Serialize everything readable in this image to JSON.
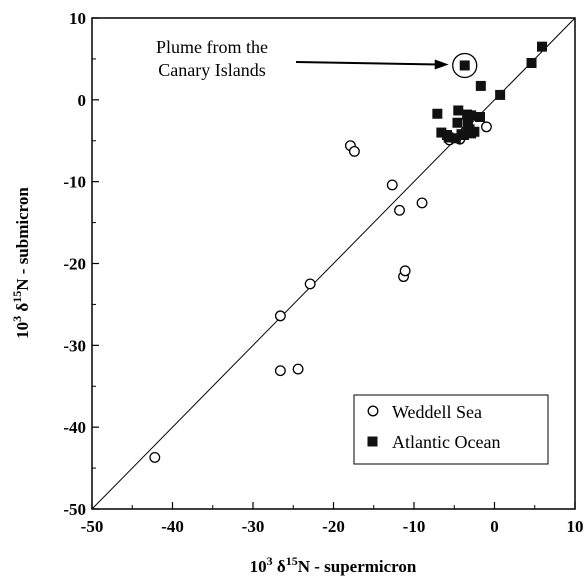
{
  "chart_data": {
    "type": "scatter",
    "xlabel": {
      "prefix": "10",
      "prefix_sup": "3",
      "delta": "δ",
      "iso_sup": "15",
      "suffix": "N - supermicron"
    },
    "ylabel": {
      "prefix": "10",
      "prefix_sup": "3",
      "delta": "δ",
      "iso_sup": "15",
      "suffix": "N - submicron"
    },
    "xlim": [
      -50,
      10
    ],
    "ylim": [
      -50,
      10
    ],
    "xticks": [
      "-50",
      "-40",
      "-30",
      "-20",
      "-10",
      "0",
      "10"
    ],
    "yticks": [
      "-50",
      "-40",
      "-30",
      "-20",
      "-10",
      "0",
      "10"
    ],
    "xtick_values": [
      -50,
      -40,
      -30,
      -20,
      -10,
      0,
      10
    ],
    "ytick_values": [
      -50,
      -40,
      -30,
      -20,
      -10,
      0,
      10
    ],
    "grid": false,
    "reference_line": {
      "from": [
        -50,
        -50
      ],
      "to": [
        10,
        10
      ]
    },
    "legend_position": "bottom-right",
    "series": [
      {
        "name": "Weddell Sea",
        "marker": "open-circle",
        "color": "#000000",
        "points": [
          [
            -42.2,
            -43.7
          ],
          [
            -26.6,
            -26.4
          ],
          [
            -26.6,
            -33.1
          ],
          [
            -24.4,
            -32.9
          ],
          [
            -22.9,
            -22.5
          ],
          [
            -17.9,
            -5.6
          ],
          [
            -17.4,
            -6.3
          ],
          [
            -12.7,
            -10.4
          ],
          [
            -11.8,
            -13.5
          ],
          [
            -11.3,
            -21.6
          ],
          [
            -11.1,
            -20.9
          ],
          [
            -9.0,
            -12.6
          ],
          [
            -4.3,
            -4.8
          ],
          [
            -3.6,
            -3.9
          ],
          [
            -1.0,
            -3.3
          ],
          [
            -5.6,
            -4.9
          ]
        ]
      },
      {
        "name": "Atlantic Ocean",
        "marker": "filled-square",
        "color": "#000000",
        "points": [
          [
            5.9,
            6.5
          ],
          [
            4.6,
            4.5
          ],
          [
            -3.7,
            4.2
          ],
          [
            -1.7,
            1.7
          ],
          [
            0.7,
            0.6
          ],
          [
            -7.1,
            -1.7
          ],
          [
            -4.5,
            -1.3
          ],
          [
            -3.4,
            -1.8
          ],
          [
            -2.9,
            -1.9
          ],
          [
            -1.8,
            -2.1
          ],
          [
            -4.6,
            -2.8
          ],
          [
            -3.3,
            -3.0
          ],
          [
            -6.6,
            -4.0
          ],
          [
            -5.9,
            -4.3
          ],
          [
            -4.1,
            -4.2
          ],
          [
            -3.1,
            -3.6
          ],
          [
            -2.5,
            -3.9
          ],
          [
            -5.7,
            -4.6
          ],
          [
            -4.8,
            -4.7
          ],
          [
            -3.8,
            -4.3
          ],
          [
            -2.9,
            -4.1
          ]
        ]
      }
    ],
    "annotation": {
      "line1": "Plume from the",
      "line2": "Canary Islands",
      "target": [
        -3.7,
        4.2
      ]
    }
  }
}
